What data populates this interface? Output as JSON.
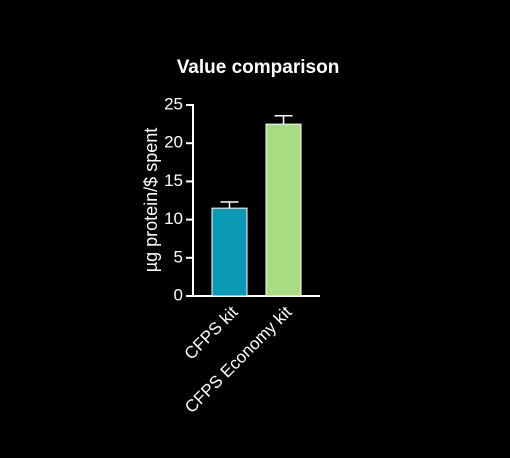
{
  "chart_data": {
    "type": "bar",
    "title": "Value comparison",
    "ylabel": "µg protein/$ spent",
    "categories": [
      "CFPS kit",
      "CFPS Economy kit"
    ],
    "values": [
      11.5,
      22.5
    ],
    "errors": [
      0.8,
      1.1
    ],
    "colors": [
      "#0a9ab6",
      "#a8dc82"
    ],
    "ylim": [
      0,
      25
    ],
    "yticks": [
      0,
      5,
      10,
      15,
      20,
      25
    ]
  }
}
